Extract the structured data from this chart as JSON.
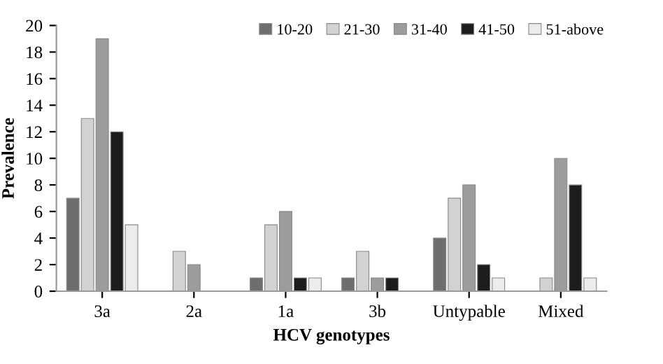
{
  "chart_data": {
    "type": "bar",
    "xlabel": "HCV genotypes",
    "ylabel": "Prevalence",
    "categories": [
      "3a",
      "2a",
      "1a",
      "3b",
      "Untypable",
      "Mixed"
    ],
    "series": [
      {
        "name": "10-20",
        "color": "#6e6e6e",
        "values": [
          7,
          0,
          1,
          1,
          4,
          0
        ]
      },
      {
        "name": "21-30",
        "color": "#d2d2d2",
        "values": [
          13,
          3,
          5,
          3,
          7,
          1
        ]
      },
      {
        "name": "31-40",
        "color": "#9c9c9c",
        "values": [
          19,
          2,
          6,
          1,
          8,
          10
        ]
      },
      {
        "name": "41-50",
        "color": "#1c1c1c",
        "values": [
          12,
          0,
          1,
          1,
          2,
          8
        ]
      },
      {
        "name": "51-above",
        "color": "#ececec",
        "values": [
          5,
          0,
          1,
          0,
          1,
          1
        ]
      }
    ],
    "ylim": [
      0,
      20
    ],
    "yticks": [
      0,
      2,
      4,
      6,
      8,
      10,
      12,
      14,
      16,
      18,
      20
    ],
    "grid": false,
    "legend": "top right"
  }
}
